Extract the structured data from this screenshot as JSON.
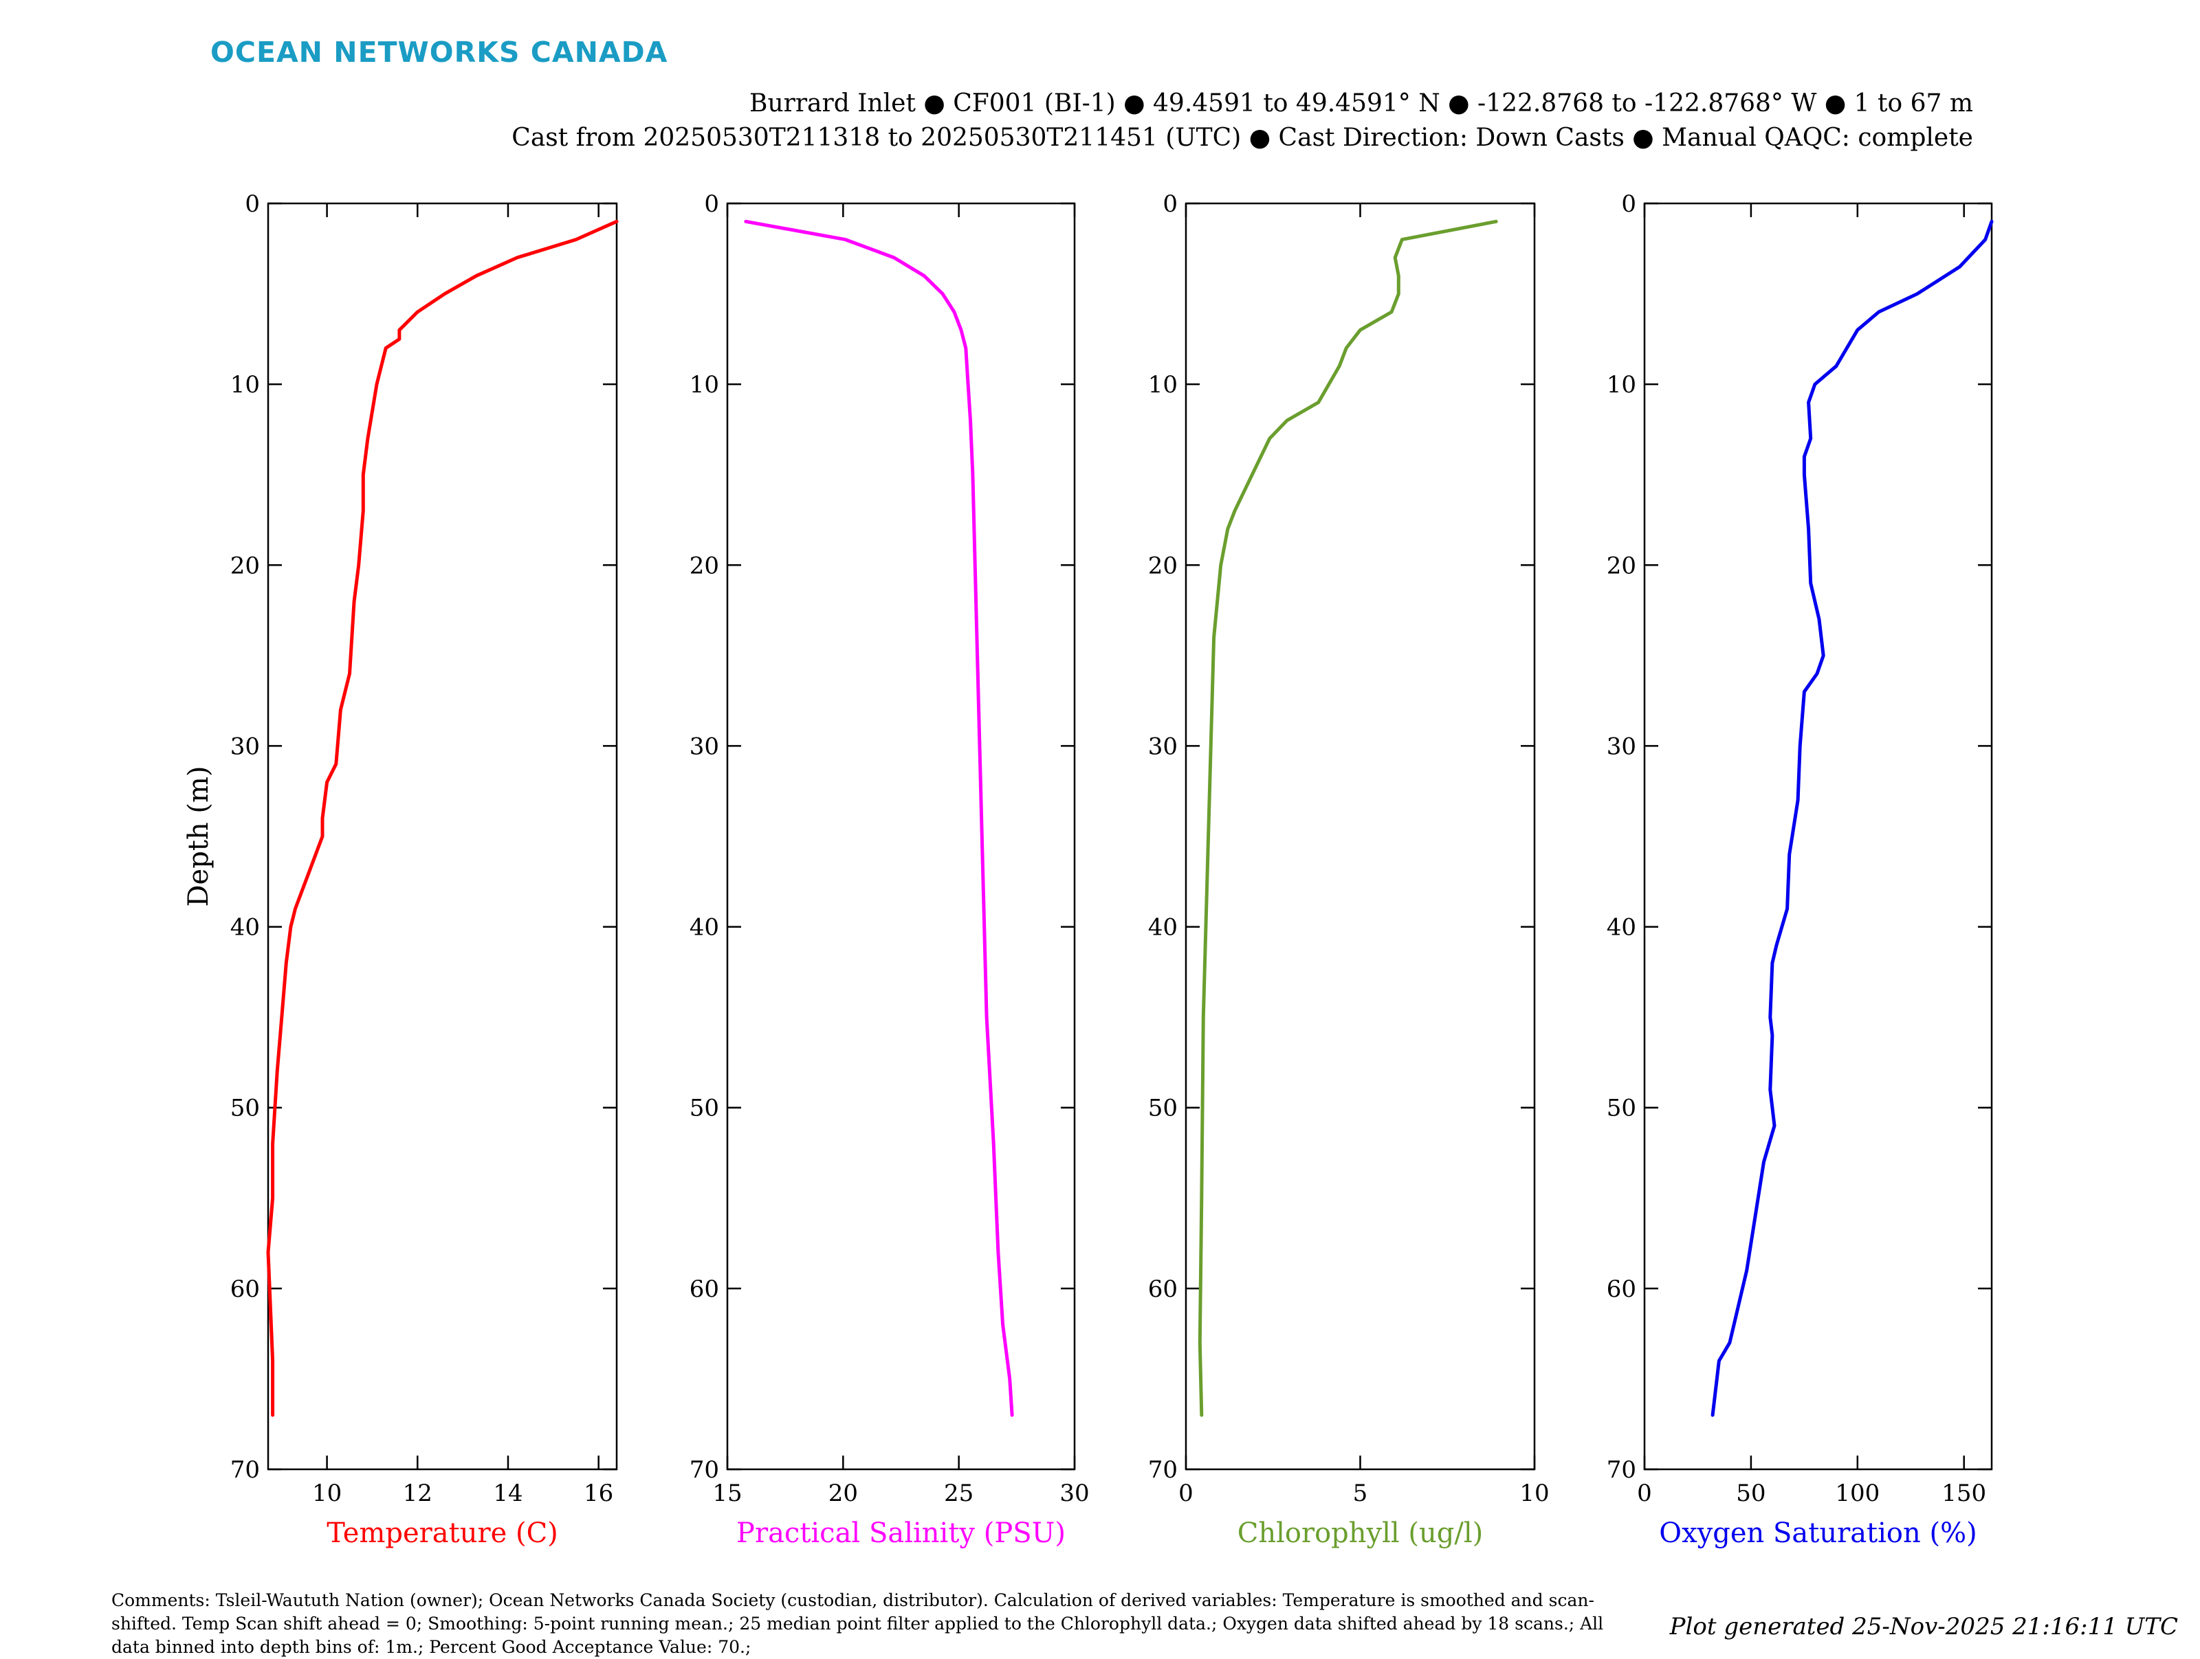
{
  "logo": {
    "text": "OCEAN NETWORKS CANADA",
    "color": "#1a9cc4"
  },
  "header": {
    "line1": "Burrard Inlet ● CF001 (BI-1) ● 49.4591 to 49.4591° N ● -122.8768 to -122.8768° W ● 1 to 67 m",
    "line2": "Cast from 20250530T211318 to 20250530T211451 (UTC) ● Cast Direction: Down Casts ● Manual QAQC: complete"
  },
  "comments": "Comments: Tsleil-Waututh Nation (owner); Ocean Networks Canada Society (custodian, distributor). Calculation of derived variables: Temperature is smoothed and scan-shifted. Temp Scan shift ahead = 0; Smoothing: 5-point running mean.; 25 median point filter applied to the Chlorophyll data.; Oxygen data shifted ahead by 18 scans.; All data binned into depth bins of: 1m.; Percent Good Acceptance Value: 70.;",
  "generated": "Plot generated 25-Nov-2025 21:16:11 UTC",
  "chart_data": [
    {
      "type": "line",
      "ylabel": "Depth (m)",
      "xlabel": "Temperature (C)",
      "color": "#ff0000",
      "xlim": [
        8.7,
        16.4
      ],
      "ylim": [
        0,
        70
      ],
      "y_reversed": true,
      "xticks": [
        10,
        12,
        14,
        16
      ],
      "yticks": [
        0,
        10,
        20,
        30,
        40,
        50,
        60,
        70
      ],
      "x": [
        16.4,
        15.5,
        14.2,
        13.3,
        12.6,
        12.0,
        11.6,
        11.6,
        11.3,
        11.1,
        10.9,
        10.8,
        10.8,
        10.7,
        10.6,
        10.5,
        10.3,
        10.2,
        10.0,
        9.9,
        9.9,
        9.6,
        9.3,
        9.2,
        9.1,
        9.0,
        8.9,
        8.8,
        8.8,
        8.7,
        8.8,
        8.8
      ],
      "y": [
        1,
        2,
        3,
        4,
        5,
        6,
        7,
        7.5,
        8,
        10,
        13,
        15,
        17,
        20,
        22,
        26,
        28,
        31,
        32,
        34,
        35,
        37,
        39,
        40,
        42,
        45,
        48,
        52,
        55,
        58,
        64,
        67
      ]
    },
    {
      "type": "line",
      "xlabel": "Practical Salinity (PSU)",
      "color": "#ff00ff",
      "xlim": [
        15,
        30
      ],
      "ylim": [
        0,
        70
      ],
      "y_reversed": true,
      "xticks": [
        15,
        20,
        25,
        30
      ],
      "yticks": [
        0,
        10,
        20,
        30,
        40,
        50,
        60,
        70
      ],
      "x": [
        15.8,
        20.1,
        22.2,
        23.5,
        24.3,
        24.8,
        25.1,
        25.3,
        25.4,
        25.5,
        25.6,
        25.8,
        26.0,
        26.2,
        26.5,
        26.7,
        26.9,
        27.2,
        27.3
      ],
      "y": [
        1,
        2,
        3,
        4,
        5,
        6,
        7,
        8,
        10,
        12,
        15,
        25,
        35,
        45,
        52,
        58,
        62,
        65,
        67
      ]
    },
    {
      "type": "line",
      "xlabel": "Chlorophyll (ug/l)",
      "color": "#6a9e2e",
      "xlim": [
        0,
        10
      ],
      "ylim": [
        0,
        70
      ],
      "y_reversed": true,
      "xticks": [
        0,
        5,
        10
      ],
      "yticks": [
        0,
        10,
        20,
        30,
        40,
        50,
        60,
        70
      ],
      "x": [
        8.9,
        6.2,
        6.0,
        6.1,
        6.1,
        5.9,
        5.0,
        4.6,
        4.4,
        3.8,
        2.9,
        2.4,
        1.9,
        1.4,
        1.2,
        1.0,
        0.8,
        0.7,
        0.6,
        0.5,
        0.45,
        0.4,
        0.45
      ],
      "y": [
        1,
        2,
        3,
        4,
        5,
        6,
        7,
        8,
        9,
        11,
        12,
        13,
        15,
        17,
        18,
        20,
        24,
        31,
        38,
        45,
        55,
        63,
        67
      ]
    },
    {
      "type": "line",
      "xlabel": "Oxygen Saturation (%)",
      "color": "#0000ee",
      "xlim": [
        0,
        163
      ],
      "ylim": [
        0,
        70
      ],
      "y_reversed": true,
      "xticks": [
        0,
        50,
        100,
        150
      ],
      "yticks": [
        0,
        10,
        20,
        30,
        40,
        50,
        60,
        70
      ],
      "x": [
        163,
        160,
        148,
        128,
        110,
        100,
        90,
        80,
        77,
        78,
        75,
        75,
        77,
        78,
        82,
        84,
        81,
        75,
        73,
        72,
        68,
        67,
        62,
        60,
        59,
        60,
        59,
        61,
        56,
        52,
        48,
        44,
        40,
        35,
        32
      ],
      "y": [
        1,
        2,
        3.5,
        5,
        6,
        7,
        9,
        10,
        11,
        13,
        14,
        15,
        18,
        21,
        23,
        25,
        26,
        27,
        30,
        33,
        36,
        39,
        41,
        42,
        45,
        46,
        49,
        51,
        53,
        56,
        59,
        61,
        63,
        64,
        67
      ]
    }
  ]
}
